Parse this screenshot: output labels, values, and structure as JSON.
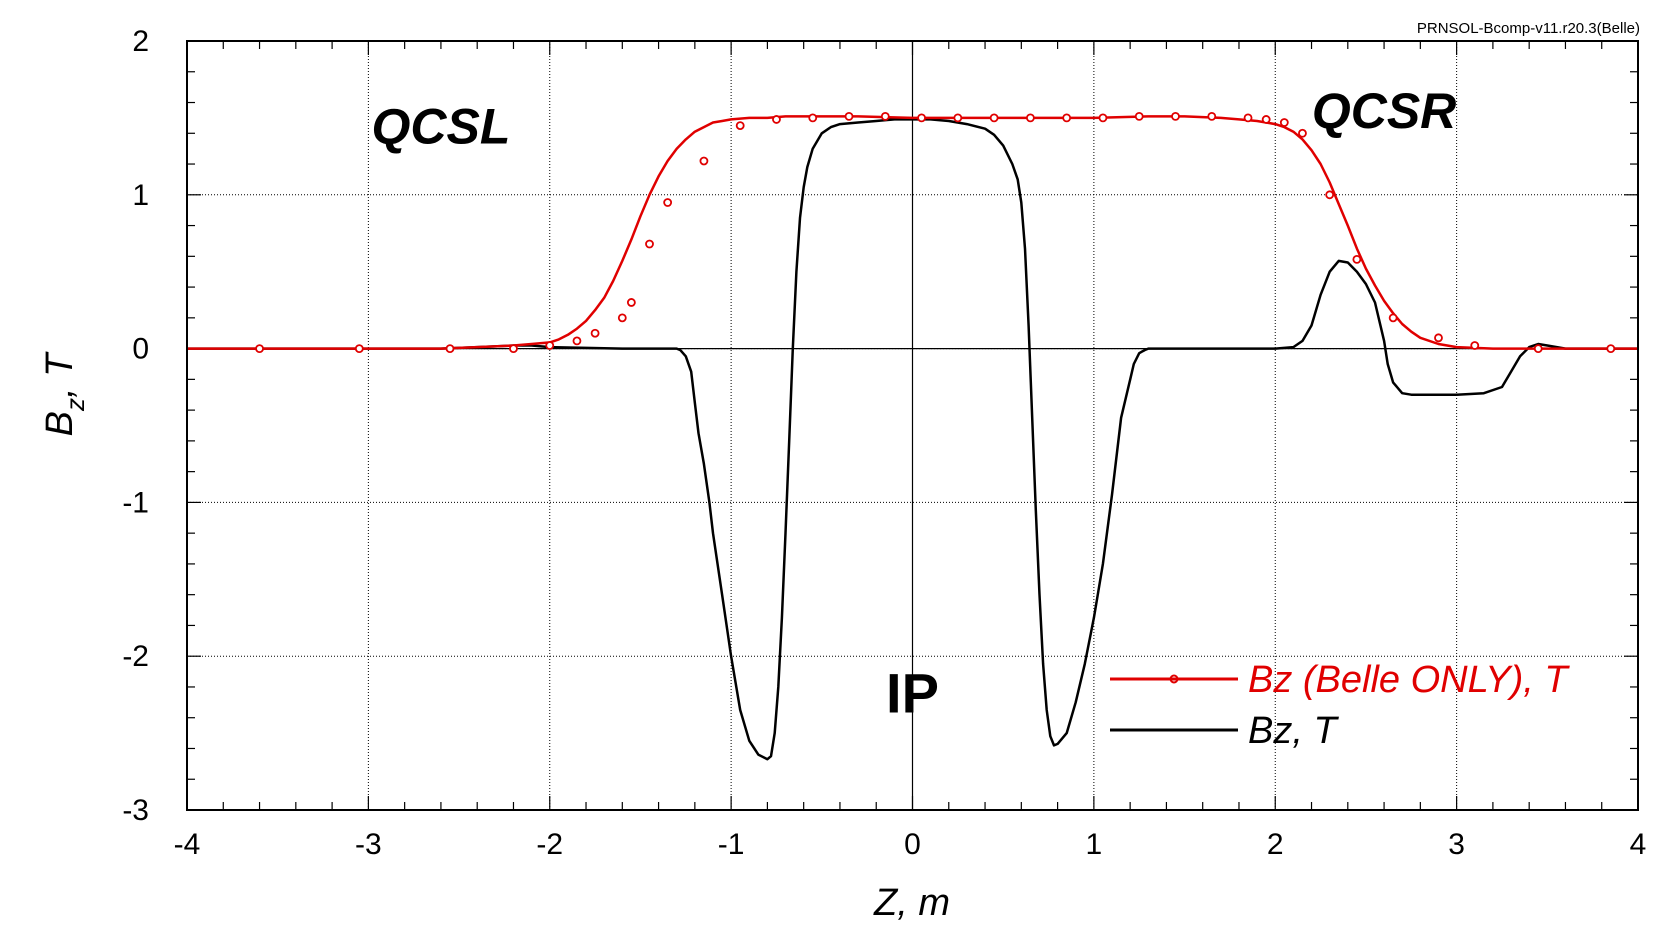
{
  "source_label": "PRNSOL-Bcomp-v11.r20.3(Belle)",
  "colors": {
    "belle_only": "#e00000",
    "total": "#000000",
    "grid": "#000000"
  },
  "chart_data": {
    "type": "line",
    "title": "",
    "xlabel": "Z, m",
    "ylabel_main": "B",
    "ylabel_sub": "z",
    "ylabel_rest": ", T",
    "xlim": [
      -4,
      4
    ],
    "ylim": [
      -3,
      2
    ],
    "xticks": [
      -4,
      -3,
      -2,
      -1,
      0,
      1,
      2,
      3,
      4
    ],
    "yticks": [
      -3,
      -2,
      -1,
      0,
      1,
      2
    ],
    "x_minor_step": 0.2,
    "y_minor_step": 0.2,
    "grid": true,
    "legend_position": "lower-right",
    "annotations": [
      {
        "text": "QCSL",
        "x": -2.6,
        "y": 1.45
      },
      {
        "text": "QCSR",
        "x": 2.6,
        "y": 1.55
      },
      {
        "text": "IP",
        "x": 0.0,
        "y": -2.25
      }
    ],
    "series": [
      {
        "name": "Bz (Belle ONLY), T",
        "color": "#e00000",
        "marker": "circle",
        "x": [
          -4.0,
          -3.6,
          -3.0,
          -2.6,
          -2.4,
          -2.2,
          -2.1,
          -2.0,
          -1.95,
          -1.9,
          -1.85,
          -1.8,
          -1.75,
          -1.7,
          -1.65,
          -1.6,
          -1.55,
          -1.5,
          -1.45,
          -1.4,
          -1.35,
          -1.3,
          -1.25,
          -1.2,
          -1.15,
          -1.1,
          -1.05,
          -1.0,
          -0.9,
          -0.8,
          -0.7,
          -0.5,
          -0.3,
          0.0,
          0.3,
          0.5,
          0.8,
          1.0,
          1.3,
          1.5,
          1.7,
          1.8,
          1.9,
          2.0,
          2.05,
          2.1,
          2.15,
          2.2,
          2.25,
          2.3,
          2.35,
          2.4,
          2.45,
          2.5,
          2.55,
          2.6,
          2.65,
          2.7,
          2.75,
          2.8,
          2.9,
          3.0,
          3.2,
          3.4,
          3.6,
          3.85,
          4.0
        ],
        "y": [
          0.0,
          0.0,
          0.0,
          0.0,
          0.01,
          0.02,
          0.03,
          0.04,
          0.06,
          0.09,
          0.13,
          0.18,
          0.25,
          0.33,
          0.44,
          0.57,
          0.71,
          0.86,
          1.0,
          1.12,
          1.22,
          1.3,
          1.36,
          1.41,
          1.44,
          1.47,
          1.48,
          1.49,
          1.5,
          1.5,
          1.51,
          1.51,
          1.51,
          1.5,
          1.5,
          1.5,
          1.5,
          1.5,
          1.51,
          1.51,
          1.5,
          1.49,
          1.48,
          1.46,
          1.44,
          1.41,
          1.36,
          1.29,
          1.2,
          1.08,
          0.94,
          0.8,
          0.65,
          0.52,
          0.41,
          0.31,
          0.23,
          0.16,
          0.11,
          0.07,
          0.03,
          0.01,
          0.0,
          0.0,
          0.0,
          0.0,
          0.0
        ],
        "markers_x": [
          -3.6,
          -3.05,
          -2.55,
          -2.2,
          -2.0,
          -1.85,
          -1.75,
          -1.6,
          -1.55,
          -1.45,
          -1.35,
          -1.15,
          -0.95,
          -0.75,
          -0.55,
          -0.35,
          -0.15,
          0.05,
          0.25,
          0.45,
          0.65,
          0.85,
          1.05,
          1.25,
          1.45,
          1.65,
          1.85,
          1.95,
          2.05,
          2.15,
          2.3,
          2.45,
          2.65,
          2.9,
          3.1,
          3.45,
          3.85
        ],
        "markers_y": [
          0.0,
          0.0,
          0.0,
          0.0,
          0.02,
          0.05,
          0.1,
          0.2,
          0.3,
          0.68,
          0.95,
          1.22,
          1.45,
          1.49,
          1.5,
          1.51,
          1.51,
          1.5,
          1.5,
          1.5,
          1.5,
          1.5,
          1.5,
          1.51,
          1.51,
          1.51,
          1.5,
          1.49,
          1.47,
          1.4,
          1.0,
          0.58,
          0.2,
          0.07,
          0.02,
          0.0,
          0.0
        ]
      },
      {
        "name": "Bz, T",
        "color": "#000000",
        "marker": "none",
        "x": [
          -4.0,
          -2.6,
          -2.4,
          -2.2,
          -2.1,
          -2.0,
          -1.6,
          -1.3,
          -1.28,
          -1.25,
          -1.22,
          -1.2,
          -1.18,
          -1.15,
          -1.12,
          -1.1,
          -1.05,
          -1.0,
          -0.95,
          -0.9,
          -0.85,
          -0.8,
          -0.78,
          -0.76,
          -0.74,
          -0.72,
          -0.7,
          -0.68,
          -0.66,
          -0.64,
          -0.62,
          -0.6,
          -0.58,
          -0.55,
          -0.5,
          -0.45,
          -0.4,
          -0.3,
          -0.2,
          -0.1,
          0.0,
          0.1,
          0.2,
          0.3,
          0.4,
          0.45,
          0.5,
          0.55,
          0.58,
          0.6,
          0.62,
          0.64,
          0.66,
          0.68,
          0.7,
          0.72,
          0.74,
          0.76,
          0.78,
          0.8,
          0.85,
          0.9,
          0.95,
          1.0,
          1.05,
          1.1,
          1.15,
          1.2,
          1.22,
          1.25,
          1.28,
          1.3,
          1.6,
          2.0,
          2.1,
          2.15,
          2.2,
          2.25,
          2.3,
          2.35,
          2.4,
          2.45,
          2.5,
          2.55,
          2.6,
          2.62,
          2.65,
          2.7,
          2.75,
          2.8,
          3.0,
          3.15,
          3.25,
          3.3,
          3.35,
          3.4,
          3.45,
          3.5,
          3.6,
          4.0
        ],
        "y": [
          0.0,
          0.0,
          0.01,
          0.02,
          0.02,
          0.01,
          0.0,
          0.0,
          -0.01,
          -0.05,
          -0.15,
          -0.35,
          -0.55,
          -0.75,
          -1.0,
          -1.2,
          -1.6,
          -2.0,
          -2.35,
          -2.55,
          -2.64,
          -2.67,
          -2.65,
          -2.5,
          -2.2,
          -1.75,
          -1.2,
          -0.6,
          0.0,
          0.5,
          0.85,
          1.05,
          1.18,
          1.3,
          1.4,
          1.44,
          1.46,
          1.47,
          1.48,
          1.49,
          1.49,
          1.49,
          1.48,
          1.46,
          1.43,
          1.39,
          1.32,
          1.2,
          1.1,
          0.95,
          0.65,
          0.15,
          -0.45,
          -1.05,
          -1.6,
          -2.05,
          -2.35,
          -2.52,
          -2.58,
          -2.57,
          -2.5,
          -2.3,
          -2.05,
          -1.75,
          -1.4,
          -0.95,
          -0.45,
          -0.2,
          -0.1,
          -0.03,
          -0.01,
          0.0,
          0.0,
          0.0,
          0.01,
          0.05,
          0.15,
          0.35,
          0.5,
          0.57,
          0.56,
          0.5,
          0.42,
          0.3,
          0.05,
          -0.1,
          -0.22,
          -0.29,
          -0.3,
          -0.3,
          -0.3,
          -0.29,
          -0.25,
          -0.15,
          -0.05,
          0.01,
          0.03,
          0.02,
          0.0,
          0.0
        ]
      }
    ]
  }
}
